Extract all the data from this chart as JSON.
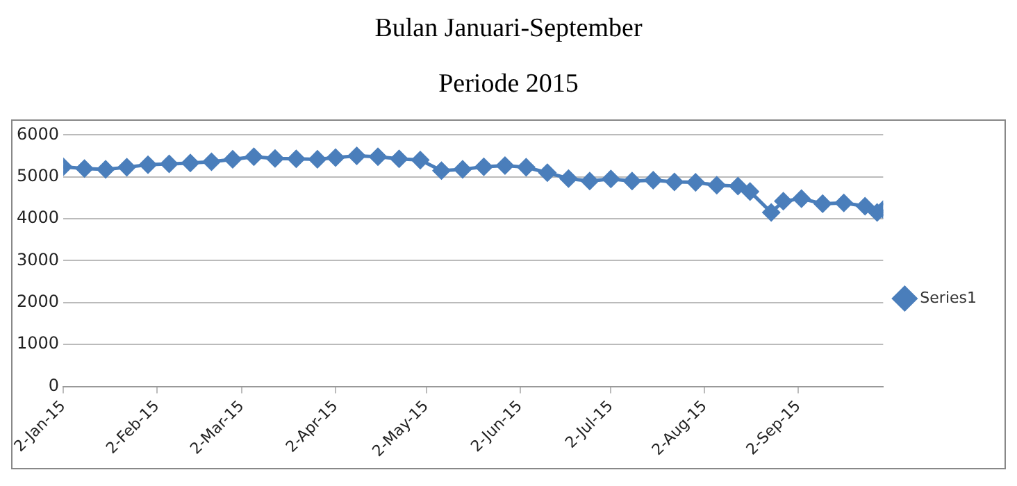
{
  "chart_data": {
    "type": "line",
    "title": "Bulan Januari-September",
    "subtitle": "Periode 2015",
    "x": [
      "2015-01-02",
      "2015-01-09",
      "2015-01-16",
      "2015-01-23",
      "2015-01-30",
      "2015-02-06",
      "2015-02-13",
      "2015-02-20",
      "2015-02-27",
      "2015-03-06",
      "2015-03-13",
      "2015-03-20",
      "2015-03-27",
      "2015-04-02",
      "2015-04-09",
      "2015-04-16",
      "2015-04-23",
      "2015-04-30",
      "2015-05-07",
      "2015-05-14",
      "2015-05-21",
      "2015-05-28",
      "2015-06-04",
      "2015-06-11",
      "2015-06-18",
      "2015-06-25",
      "2015-07-02",
      "2015-07-09",
      "2015-07-16",
      "2015-07-23",
      "2015-07-30",
      "2015-08-06",
      "2015-08-13",
      "2015-08-17",
      "2015-08-24",
      "2015-08-28",
      "2015-09-03",
      "2015-09-10",
      "2015-09-17",
      "2015-09-24",
      "2015-09-28",
      "2015-09-30"
    ],
    "series": [
      {
        "name": "Series1",
        "color": "#4a7ebb",
        "values": [
          5240,
          5200,
          5180,
          5230,
          5290,
          5310,
          5330,
          5360,
          5420,
          5480,
          5440,
          5430,
          5420,
          5460,
          5500,
          5480,
          5430,
          5400,
          5150,
          5180,
          5240,
          5270,
          5230,
          5100,
          4960,
          4900,
          4950,
          4900,
          4920,
          4880,
          4870,
          4800,
          4780,
          4650,
          4150,
          4420,
          4480,
          4360,
          4380,
          4300,
          4150,
          4220
        ]
      }
    ],
    "xlim": [
      "2015-01-02",
      "2015-09-30"
    ],
    "xticks": [
      {
        "value": "2015-01-02",
        "label": "2-Jan-15"
      },
      {
        "value": "2015-02-02",
        "label": "2-Feb-15"
      },
      {
        "value": "2015-03-02",
        "label": "2-Mar-15"
      },
      {
        "value": "2015-04-02",
        "label": "2-Apr-15"
      },
      {
        "value": "2015-05-02",
        "label": "2-May-15"
      },
      {
        "value": "2015-06-02",
        "label": "2-Jun-15"
      },
      {
        "value": "2015-07-02",
        "label": "2-Jul-15"
      },
      {
        "value": "2015-08-02",
        "label": "2-Aug-15"
      },
      {
        "value": "2015-09-02",
        "label": "2-Sep-15"
      }
    ],
    "ylim": [
      0,
      6000
    ],
    "yticks": [
      0,
      1000,
      2000,
      3000,
      4000,
      5000,
      6000
    ],
    "grid": "y",
    "legend": "right",
    "marker": "diamond",
    "line_style": "solid"
  }
}
